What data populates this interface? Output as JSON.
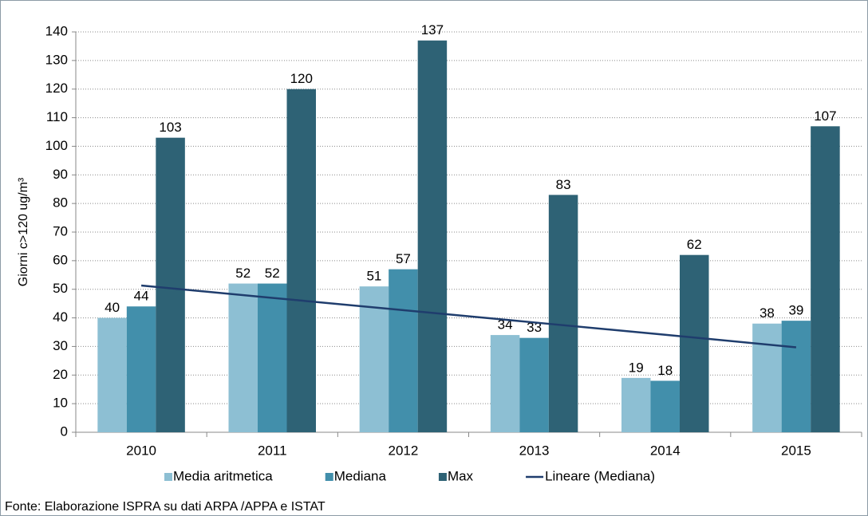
{
  "chart_data": {
    "type": "bar",
    "ylabel": "Giorni c>120 ug/m³",
    "categories": [
      "2010",
      "2011",
      "2012",
      "2013",
      "2014",
      "2015"
    ],
    "series": [
      {
        "name": "Media aritmetica",
        "color": "#8dbfd3",
        "values": [
          40,
          52,
          51,
          34,
          19,
          38
        ]
      },
      {
        "name": "Mediana",
        "color": "#428fab",
        "values": [
          44,
          52,
          57,
          33,
          18,
          39
        ]
      },
      {
        "name": "Max",
        "color": "#2e6275",
        "values": [
          103,
          120,
          137,
          83,
          62,
          107
        ]
      },
      {
        "name": "Lineare (Mediana)",
        "type": "line",
        "color": "#1f3d6d",
        "values": [
          51.3,
          47.0,
          42.7,
          38.4,
          34.1,
          29.7
        ]
      }
    ],
    "ylim": [
      0,
      140
    ],
    "yticks": [
      0,
      10,
      20,
      30,
      40,
      50,
      60,
      70,
      80,
      90,
      100,
      110,
      120,
      130,
      140
    ],
    "grid": true,
    "legend": "bottom",
    "note": "Fonte: Elaborazione ISPRA su dati ARPA /APPA e ISTAT"
  }
}
